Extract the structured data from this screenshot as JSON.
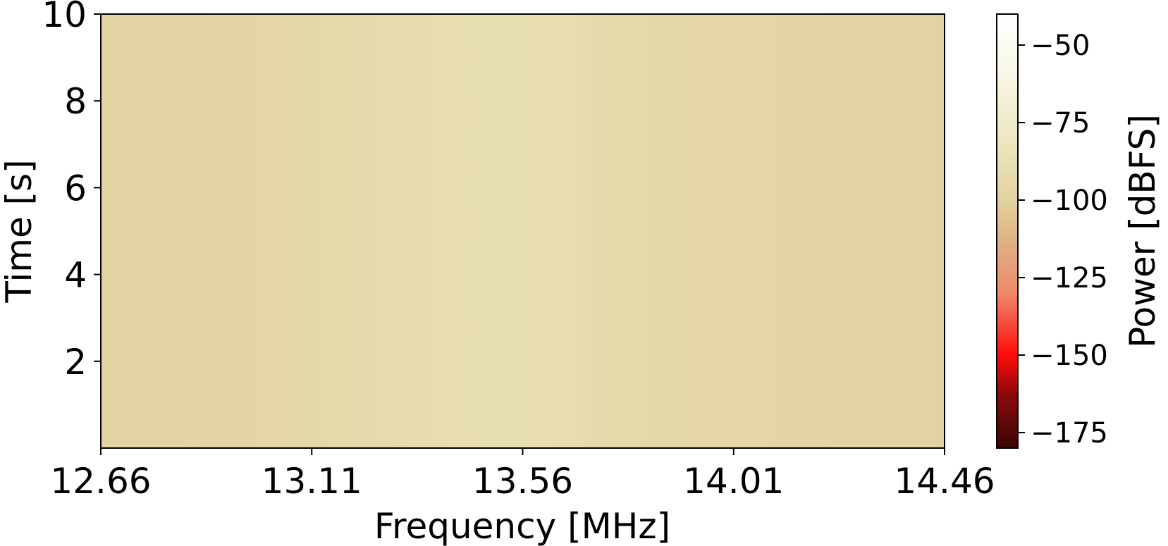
{
  "chart_data": {
    "type": "heatmap",
    "title": "",
    "xlabel": "Frequency [MHz]",
    "ylabel": "Time [s]",
    "xlim": [
      12.66,
      14.46
    ],
    "ylim": [
      0,
      10
    ],
    "x_ticks": [
      "12.66",
      "13.11",
      "13.56",
      "14.01",
      "14.46"
    ],
    "y_ticks": [
      "2",
      "4",
      "6",
      "8",
      "10"
    ],
    "grid": false,
    "colorbar": {
      "label": "Power [dBFS]",
      "range": [
        -180,
        -40
      ],
      "ticks": [
        "−50",
        "−75",
        "−100",
        "−125",
        "−150",
        "−175"
      ],
      "tick_values": [
        -50,
        -75,
        -100,
        -125,
        -150,
        -175
      ],
      "colormap_stops": [
        {
          "value": -180,
          "color": "#3a0508"
        },
        {
          "value": -163,
          "color": "#8a0a0a"
        },
        {
          "value": -150,
          "color": "#ff0a0a"
        },
        {
          "value": -130,
          "color": "#f08a6a"
        },
        {
          "value": -112,
          "color": "#dfb486"
        },
        {
          "value": -100,
          "color": "#e1d2a0"
        },
        {
          "value": -80,
          "color": "#eee7c2"
        },
        {
          "value": -60,
          "color": "#f8f6e4"
        },
        {
          "value": -40,
          "color": "#ffffff"
        }
      ]
    },
    "frequency_profile": {
      "frequencies_mhz": [
        12.66,
        12.96,
        13.26,
        13.46,
        13.56,
        13.66,
        13.76,
        13.96,
        14.16,
        14.46
      ],
      "power_dbfs": [
        -98,
        -97,
        -92,
        -88,
        -88,
        -90,
        -94,
        -96,
        -97,
        -99
      ]
    }
  }
}
